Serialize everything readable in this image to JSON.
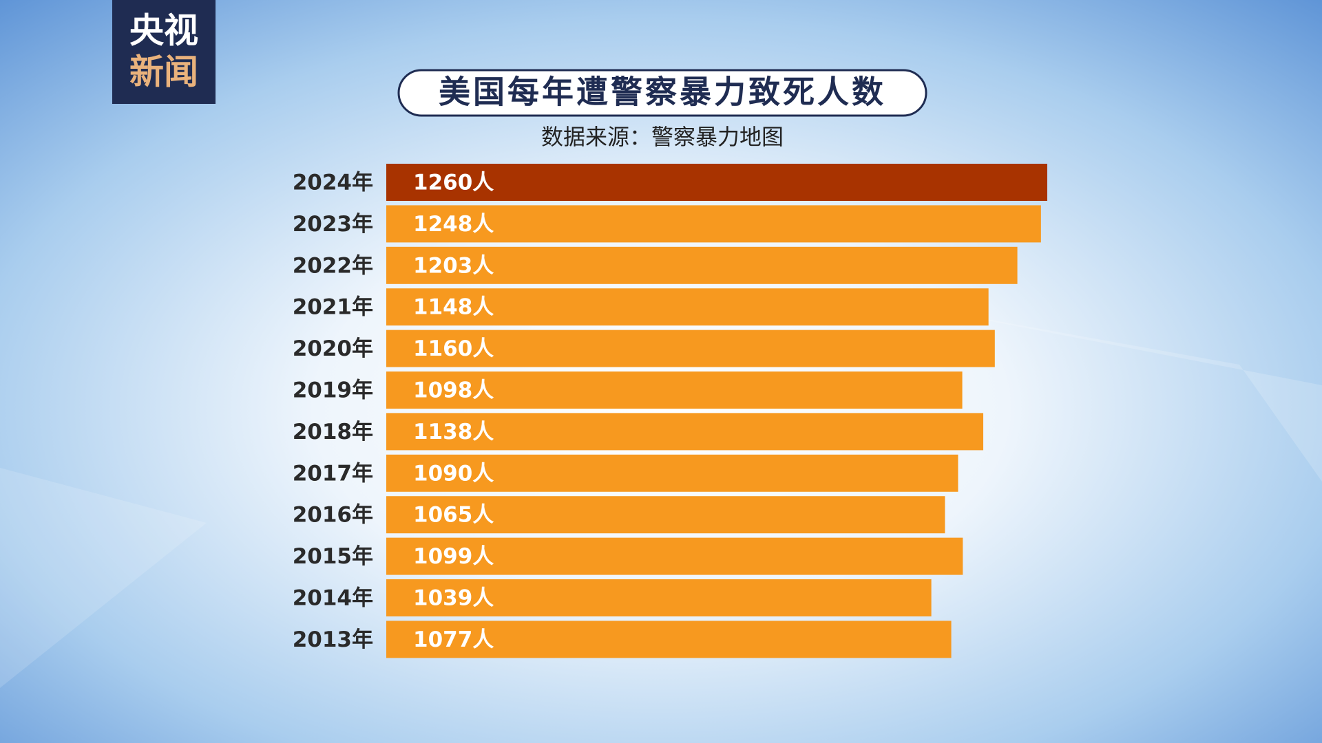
{
  "logo": [
    "央视",
    "新闻"
  ],
  "chart_data": {
    "type": "hbar",
    "title": "美国每年遭警察暴力致死人数",
    "subtitle": "数据来源：警察暴力地图",
    "categories": [
      "2024年",
      "2023年",
      "2022年",
      "2021年",
      "2020年",
      "2019年",
      "2018年",
      "2017年",
      "2016年",
      "2015年",
      "2014年",
      "2013年"
    ],
    "values": [
      1260,
      1248,
      1203,
      1148,
      1160,
      1098,
      1138,
      1090,
      1065,
      1099,
      1039,
      1077
    ],
    "value_labels": [
      "1260人",
      "1248人",
      "1203人",
      "1148人",
      "1160人",
      "1098人",
      "1138人",
      "1090人",
      "1065人",
      "1099人",
      "1039人",
      "1077人"
    ],
    "colors": [
      "#a83300",
      "#f7991f",
      "#f7991f",
      "#f7991f",
      "#f7991f",
      "#f7991f",
      "#f7991f",
      "#f7991f",
      "#f7991f",
      "#f7991f",
      "#f7991f",
      "#f7991f"
    ]
  }
}
